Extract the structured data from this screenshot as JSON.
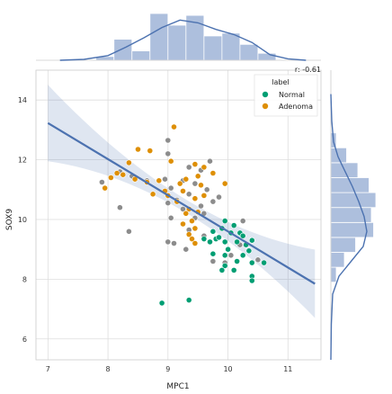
{
  "chart_data": {
    "type": "scatter",
    "xlabel": "MPC1",
    "ylabel": "SOX9",
    "xlim": [
      6.8,
      11.55
    ],
    "ylim": [
      5.3,
      15.0
    ],
    "xticks": [
      7,
      8,
      9,
      10,
      11
    ],
    "yticks": [
      6,
      8,
      10,
      12,
      14
    ],
    "grid": true,
    "annotation": "r: -0.61",
    "legend": {
      "title": "label",
      "position": "top-right",
      "entries": [
        "Normal",
        "Adenoma"
      ]
    },
    "colors": {
      "Normal": "#009e73",
      "Adenoma": "#de8f05",
      "unlabeled": "#8c8c8c",
      "regression": "#4c72b0",
      "hist": "#adbfdd"
    },
    "regression": {
      "slope": -1.21,
      "intercept": 21.7,
      "x_range": [
        7.0,
        11.45
      ]
    },
    "series": [
      {
        "name": "Normal",
        "points": [
          [
            9.95,
            9.95
          ],
          [
            10.1,
            9.8
          ],
          [
            9.9,
            9.7
          ],
          [
            10.2,
            9.55
          ],
          [
            10.05,
            9.55
          ],
          [
            9.75,
            9.6
          ],
          [
            9.8,
            9.35
          ],
          [
            9.6,
            9.35
          ],
          [
            9.7,
            9.25
          ],
          [
            10.25,
            9.45
          ],
          [
            9.95,
            9.25
          ],
          [
            10.15,
            9.25
          ],
          [
            10.3,
            9.15
          ],
          [
            10.4,
            9.3
          ],
          [
            9.85,
            9.4
          ],
          [
            10.0,
            9.0
          ],
          [
            9.75,
            8.85
          ],
          [
            9.95,
            8.8
          ],
          [
            10.35,
            8.95
          ],
          [
            10.25,
            8.8
          ],
          [
            10.15,
            8.6
          ],
          [
            9.95,
            8.45
          ],
          [
            9.9,
            8.3
          ],
          [
            10.1,
            8.3
          ],
          [
            10.4,
            8.55
          ],
          [
            10.6,
            8.55
          ],
          [
            10.4,
            8.1
          ],
          [
            10.4,
            7.95
          ],
          [
            8.9,
            7.2
          ],
          [
            9.35,
            7.3
          ]
        ]
      },
      {
        "name": "Adenoma",
        "points": [
          [
            9.1,
            13.1
          ],
          [
            8.5,
            12.35
          ],
          [
            8.7,
            12.3
          ],
          [
            9.05,
            11.95
          ],
          [
            8.35,
            11.9
          ],
          [
            9.45,
            11.85
          ],
          [
            9.6,
            11.75
          ],
          [
            8.15,
            11.55
          ],
          [
            8.25,
            11.5
          ],
          [
            8.05,
            11.4
          ],
          [
            8.45,
            11.35
          ],
          [
            8.65,
            11.25
          ],
          [
            8.85,
            11.3
          ],
          [
            9.3,
            11.35
          ],
          [
            9.5,
            11.45
          ],
          [
            9.75,
            11.55
          ],
          [
            9.2,
            11.2
          ],
          [
            9.55,
            11.15
          ],
          [
            9.95,
            11.2
          ],
          [
            7.95,
            11.05
          ],
          [
            8.95,
            10.95
          ],
          [
            9.25,
            10.95
          ],
          [
            8.75,
            10.85
          ],
          [
            9.0,
            10.8
          ],
          [
            9.6,
            10.8
          ],
          [
            9.45,
            10.7
          ],
          [
            9.15,
            10.6
          ],
          [
            9.35,
            10.35
          ],
          [
            9.3,
            10.2
          ],
          [
            9.5,
            10.25
          ],
          [
            9.4,
            9.95
          ],
          [
            9.25,
            9.85
          ],
          [
            9.45,
            9.7
          ],
          [
            9.35,
            9.5
          ],
          [
            9.4,
            9.35
          ],
          [
            9.45,
            9.2
          ]
        ]
      },
      {
        "name": "",
        "points": [
          [
            9.0,
            12.65
          ],
          [
            9.0,
            12.2
          ],
          [
            9.05,
            11.95
          ],
          [
            9.7,
            11.95
          ],
          [
            9.35,
            11.75
          ],
          [
            8.2,
            11.6
          ],
          [
            9.55,
            11.65
          ],
          [
            8.4,
            11.45
          ],
          [
            8.65,
            11.3
          ],
          [
            7.9,
            11.25
          ],
          [
            8.95,
            11.35
          ],
          [
            9.25,
            11.3
          ],
          [
            9.45,
            11.2
          ],
          [
            9.05,
            11.05
          ],
          [
            9.65,
            11.0
          ],
          [
            9.35,
            10.85
          ],
          [
            9.85,
            10.75
          ],
          [
            9.15,
            10.65
          ],
          [
            9.75,
            10.6
          ],
          [
            9.0,
            10.55
          ],
          [
            9.55,
            10.45
          ],
          [
            8.2,
            10.4
          ],
          [
            9.25,
            10.35
          ],
          [
            9.6,
            10.2
          ],
          [
            9.05,
            10.05
          ],
          [
            9.45,
            10.05
          ],
          [
            10.25,
            9.95
          ],
          [
            9.35,
            9.65
          ],
          [
            8.35,
            9.6
          ],
          [
            9.6,
            9.45
          ],
          [
            9.0,
            9.25
          ],
          [
            9.1,
            9.2
          ],
          [
            10.2,
            9.15
          ],
          [
            10.05,
            8.8
          ],
          [
            9.75,
            8.6
          ],
          [
            9.95,
            8.55
          ],
          [
            10.5,
            8.65
          ],
          [
            9.3,
            9.0
          ]
        ]
      }
    ],
    "marginal_x": {
      "bin_edges": [
        7.8,
        8.1,
        8.4,
        8.7,
        9.0,
        9.3,
        9.6,
        9.9,
        10.2,
        10.5,
        10.8
      ],
      "heights": [
        0.08,
        0.45,
        0.2,
        1.0,
        0.75,
        0.96,
        0.52,
        0.58,
        0.34,
        0.15
      ],
      "kde": [
        [
          7.2,
          0.0
        ],
        [
          7.6,
          0.02
        ],
        [
          8.0,
          0.1
        ],
        [
          8.3,
          0.28
        ],
        [
          8.6,
          0.48
        ],
        [
          8.9,
          0.7
        ],
        [
          9.2,
          0.86
        ],
        [
          9.5,
          0.8
        ],
        [
          9.8,
          0.66
        ],
        [
          10.1,
          0.55
        ],
        [
          10.4,
          0.38
        ],
        [
          10.7,
          0.12
        ],
        [
          11.0,
          0.03
        ],
        [
          11.3,
          0.0
        ]
      ]
    },
    "marginal_y": {
      "bin_edges": [
        7.9,
        8.4,
        8.9,
        9.4,
        9.9,
        10.4,
        10.9,
        11.4,
        11.9,
        12.4,
        12.9
      ],
      "heights": [
        0.12,
        0.3,
        0.55,
        0.95,
        0.9,
        1.0,
        0.85,
        0.6,
        0.35,
        0.12
      ],
      "kde": [
        [
          5.3,
          0.0
        ],
        [
          6.5,
          0.01
        ],
        [
          7.5,
          0.04
        ],
        [
          8.1,
          0.18
        ],
        [
          8.6,
          0.45
        ],
        [
          9.1,
          0.72
        ],
        [
          9.6,
          0.8
        ],
        [
          10.1,
          0.74
        ],
        [
          10.6,
          0.62
        ],
        [
          11.1,
          0.48
        ],
        [
          11.6,
          0.32
        ],
        [
          12.1,
          0.16
        ],
        [
          12.6,
          0.06
        ],
        [
          13.3,
          0.02
        ],
        [
          14.2,
          0.0
        ]
      ]
    }
  }
}
